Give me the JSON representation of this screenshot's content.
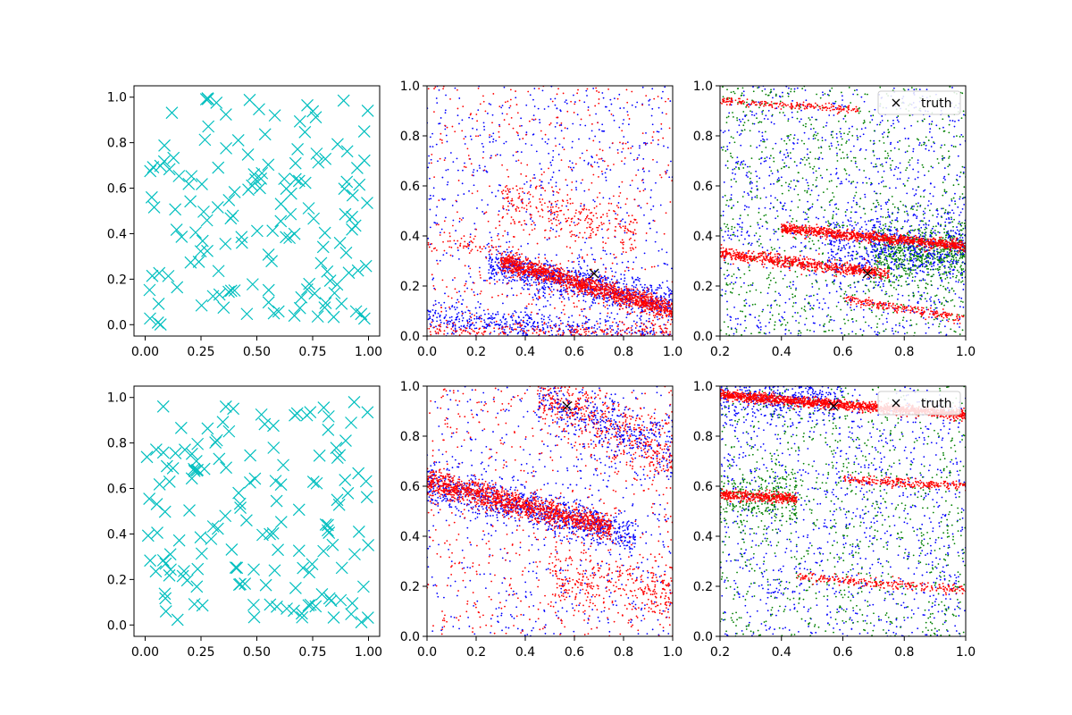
{
  "colors": {
    "marker_cyan": "#00bfbf",
    "dot_blue": "#0000ff",
    "dot_red": "#ff0000",
    "dot_green": "#008000",
    "truth_marker": "#000000",
    "axes": "#000000",
    "background": "#ffffff"
  },
  "chart_data": [
    {
      "id": "top-left",
      "type": "scatter",
      "marker": "x",
      "color": "cyan",
      "n_points": 150,
      "seed": 11,
      "xlim": [
        -0.05,
        1.05
      ],
      "ylim": [
        -0.05,
        1.05
      ],
      "xticks": [
        0.0,
        0.25,
        0.5,
        0.75,
        1.0
      ],
      "xtick_labels": [
        "0.00",
        "0.25",
        "0.50",
        "0.75",
        "1.00"
      ],
      "yticks": [
        0.0,
        0.2,
        0.4,
        0.6,
        0.8,
        1.0
      ],
      "ytick_labels": [
        "0.0",
        "0.2",
        "0.4",
        "0.6",
        "0.8",
        "1.0"
      ],
      "grid": false
    },
    {
      "id": "top-middle",
      "type": "scatter",
      "marker": "dot",
      "seed": 23,
      "xlim": [
        0.0,
        1.0
      ],
      "ylim": [
        0.0,
        1.0
      ],
      "xticks": [
        0.0,
        0.2,
        0.4,
        0.6,
        0.8,
        1.0
      ],
      "xtick_labels": [
        "0.0",
        "0.2",
        "0.4",
        "0.6",
        "0.8",
        "1.0"
      ],
      "yticks": [
        0.0,
        0.2,
        0.4,
        0.6,
        0.8,
        1.0
      ],
      "ytick_labels": [
        "0.0",
        "0.2",
        "0.4",
        "0.6",
        "0.8",
        "1.0"
      ],
      "grid": false,
      "uniform": [
        {
          "color": "blue",
          "n": 700
        },
        {
          "color": "red",
          "n": 500
        }
      ],
      "bands": [
        {
          "color": "blue",
          "x_range": [
            0.25,
            1.0
          ],
          "y_at_start": 0.29,
          "slope": -0.22,
          "spread": 0.035,
          "n": 900
        },
        {
          "color": "red",
          "x_range": [
            0.3,
            1.0
          ],
          "y_at_start": 0.3,
          "slope": -0.28,
          "spread": 0.02,
          "n": 1400
        },
        {
          "color": "blue",
          "x_range": [
            0.0,
            1.0
          ],
          "y_at_start": 0.08,
          "slope": -0.1,
          "spread": 0.03,
          "n": 500
        },
        {
          "color": "red",
          "x_range": [
            0.0,
            1.0
          ],
          "y_at_start": 0.02,
          "slope": 0.0,
          "spread": 0.02,
          "n": 250
        },
        {
          "color": "red",
          "x_range": [
            0.3,
            0.85
          ],
          "y_at_start": 0.55,
          "slope": -0.25,
          "spread": 0.05,
          "n": 250
        },
        {
          "color": "red",
          "x_range": [
            0.0,
            0.3
          ],
          "y_at_start": 0.38,
          "slope": -0.1,
          "spread": 0.02,
          "n": 60
        }
      ],
      "truth": {
        "x": 0.68,
        "y": 0.25
      },
      "legend": null
    },
    {
      "id": "top-right",
      "type": "scatter",
      "marker": "dot",
      "seed": 37,
      "xlim": [
        0.2,
        1.0
      ],
      "ylim": [
        0.0,
        1.0
      ],
      "xticks": [
        0.2,
        0.4,
        0.6,
        0.8,
        1.0
      ],
      "xtick_labels": [
        "0.2",
        "0.4",
        "0.6",
        "0.8",
        "1.0"
      ],
      "yticks": [
        0.0,
        0.2,
        0.4,
        0.6,
        0.8,
        1.0
      ],
      "ytick_labels": [
        "0.0",
        "0.2",
        "0.4",
        "0.6",
        "0.8",
        "1.0"
      ],
      "grid": false,
      "uniform": [
        {
          "color": "blue",
          "n": 1000
        },
        {
          "color": "green",
          "n": 1000
        }
      ],
      "bands": [
        {
          "color": "green",
          "x_range": [
            0.7,
            1.0
          ],
          "y_at_start": 0.33,
          "slope": 0.0,
          "spread": 0.06,
          "n": 600
        },
        {
          "color": "blue",
          "x_range": [
            0.55,
            1.0
          ],
          "y_at_start": 0.35,
          "slope": 0.0,
          "spread": 0.07,
          "n": 600
        },
        {
          "color": "red",
          "x_range": [
            0.2,
            0.75
          ],
          "y_at_start": 0.33,
          "slope": -0.15,
          "spread": 0.012,
          "n": 700
        },
        {
          "color": "red",
          "x_range": [
            0.4,
            1.0
          ],
          "y_at_start": 0.43,
          "slope": -0.12,
          "spread": 0.01,
          "n": 1000
        },
        {
          "color": "red",
          "x_range": [
            0.2,
            0.65
          ],
          "y_at_start": 0.94,
          "slope": -0.08,
          "spread": 0.008,
          "n": 200
        },
        {
          "color": "red",
          "x_range": [
            0.6,
            1.0
          ],
          "y_at_start": 0.15,
          "slope": -0.2,
          "spread": 0.01,
          "n": 220
        }
      ],
      "truth": {
        "x": 0.68,
        "y": 0.25
      },
      "legend": {
        "label": "truth",
        "location": "upper right"
      }
    },
    {
      "id": "bottom-left",
      "type": "scatter",
      "marker": "x",
      "color": "cyan",
      "n_points": 150,
      "seed": 53,
      "xlim": [
        -0.05,
        1.05
      ],
      "ylim": [
        -0.05,
        1.05
      ],
      "xticks": [
        0.0,
        0.25,
        0.5,
        0.75,
        1.0
      ],
      "xtick_labels": [
        "0.00",
        "0.25",
        "0.50",
        "0.75",
        "1.00"
      ],
      "yticks": [
        0.0,
        0.2,
        0.4,
        0.6,
        0.8,
        1.0
      ],
      "ytick_labels": [
        "0.0",
        "0.2",
        "0.4",
        "0.6",
        "0.8",
        "1.0"
      ],
      "grid": false
    },
    {
      "id": "bottom-middle",
      "type": "scatter",
      "marker": "dot",
      "seed": 71,
      "xlim": [
        0.0,
        1.0
      ],
      "ylim": [
        0.0,
        1.0
      ],
      "xticks": [
        0.0,
        0.2,
        0.4,
        0.6,
        0.8,
        1.0
      ],
      "xtick_labels": [
        "0.0",
        "0.2",
        "0.4",
        "0.6",
        "0.8",
        "1.0"
      ],
      "yticks": [
        0.0,
        0.2,
        0.4,
        0.6,
        0.8,
        1.0
      ],
      "ytick_labels": [
        "0.0",
        "0.2",
        "0.4",
        "0.6",
        "0.8",
        "1.0"
      ],
      "grid": false,
      "uniform": [
        {
          "color": "blue",
          "n": 600
        },
        {
          "color": "red",
          "n": 600
        }
      ],
      "bands": [
        {
          "color": "blue",
          "x_range": [
            0.0,
            0.85
          ],
          "y_at_start": 0.61,
          "slope": -0.25,
          "spread": 0.04,
          "n": 900
        },
        {
          "color": "red",
          "x_range": [
            0.0,
            0.75
          ],
          "y_at_start": 0.62,
          "slope": -0.25,
          "spread": 0.025,
          "n": 1300
        },
        {
          "color": "red",
          "x_range": [
            0.45,
            1.0
          ],
          "y_at_start": 0.98,
          "slope": -0.45,
          "spread": 0.06,
          "n": 500
        },
        {
          "color": "blue",
          "x_range": [
            0.45,
            1.0
          ],
          "y_at_start": 0.96,
          "slope": -0.4,
          "spread": 0.06,
          "n": 350
        },
        {
          "color": "red",
          "x_range": [
            0.5,
            1.0
          ],
          "y_at_start": 0.22,
          "slope": -0.1,
          "spread": 0.06,
          "n": 300
        }
      ],
      "truth": {
        "x": 0.57,
        "y": 0.92
      },
      "legend": null
    },
    {
      "id": "bottom-right",
      "type": "scatter",
      "marker": "dot",
      "seed": 89,
      "xlim": [
        0.2,
        1.0
      ],
      "ylim": [
        0.0,
        1.0
      ],
      "xticks": [
        0.2,
        0.4,
        0.6,
        0.8,
        1.0
      ],
      "xtick_labels": [
        "0.2",
        "0.4",
        "0.6",
        "0.8",
        "1.0"
      ],
      "yticks": [
        0.0,
        0.2,
        0.4,
        0.6,
        0.8,
        1.0
      ],
      "ytick_labels": [
        "0.0",
        "0.2",
        "0.4",
        "0.6",
        "0.8",
        "1.0"
      ],
      "grid": false,
      "uniform": [
        {
          "color": "blue",
          "n": 1100
        },
        {
          "color": "green",
          "n": 900
        }
      ],
      "bands": [
        {
          "color": "blue",
          "x_range": [
            0.2,
            0.6
          ],
          "y_at_start": 0.95,
          "slope": 0.0,
          "spread": 0.04,
          "n": 350
        },
        {
          "color": "green",
          "x_range": [
            0.2,
            0.45
          ],
          "y_at_start": 0.55,
          "slope": 0.0,
          "spread": 0.06,
          "n": 250
        },
        {
          "color": "red",
          "x_range": [
            0.2,
            1.0
          ],
          "y_at_start": 0.965,
          "slope": -0.1,
          "spread": 0.01,
          "n": 1500
        },
        {
          "color": "red",
          "x_range": [
            0.2,
            0.45
          ],
          "y_at_start": 0.565,
          "slope": -0.05,
          "spread": 0.01,
          "n": 400
        },
        {
          "color": "red",
          "x_range": [
            0.6,
            1.0
          ],
          "y_at_start": 0.63,
          "slope": -0.08,
          "spread": 0.01,
          "n": 250
        },
        {
          "color": "red",
          "x_range": [
            0.45,
            1.0
          ],
          "y_at_start": 0.24,
          "slope": -0.1,
          "spread": 0.01,
          "n": 250
        }
      ],
      "truth": {
        "x": 0.57,
        "y": 0.92
      },
      "legend": {
        "label": "truth",
        "location": "upper right"
      }
    }
  ]
}
